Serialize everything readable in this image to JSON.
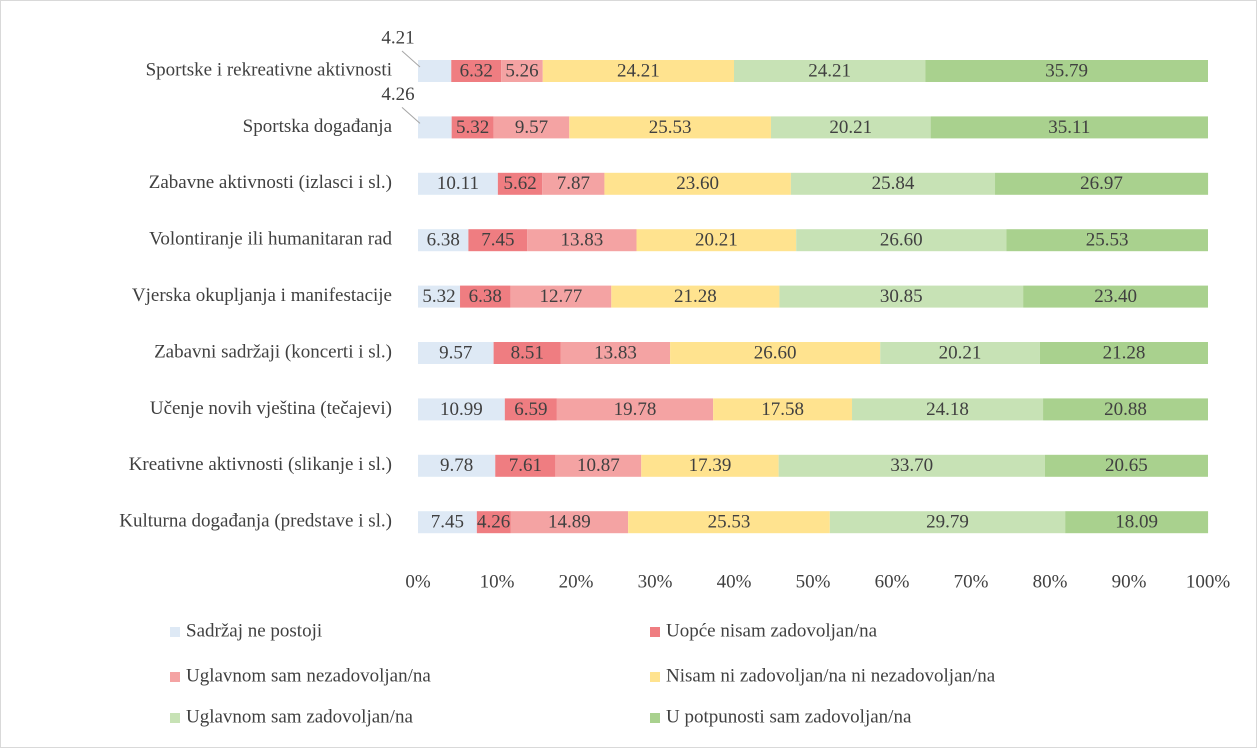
{
  "chart_data": {
    "type": "stacked_barh",
    "categories": [
      "Sportske i rekreativne aktivnosti",
      "Sportska događanja",
      "Zabavne aktivnosti (izlasci i sl.)",
      "Volontiranje ili humanitaran rad",
      "Vjerska okupljanja i manifestacije",
      "Zabavni sadržaji (koncerti i sl.)",
      "Učenje novih vještina (tečajevi)",
      "Kreativne aktivnosti (slikanje i sl.)",
      "Kulturna događanja (predstave i sl.)"
    ],
    "series": [
      {
        "name": "Sadržaj ne postoji",
        "color": "#dee9f5",
        "values": [
          4.21,
          4.26,
          10.11,
          6.38,
          5.32,
          9.57,
          10.99,
          9.78,
          7.45
        ],
        "value_labels": [
          "4.21",
          "4.26",
          "10.11",
          "6.38",
          "5.32",
          "9.57",
          "10.99",
          "9.78",
          "7.45"
        ]
      },
      {
        "name": "Uopće nisam zadovoljan/na",
        "color": "#ef7d81",
        "values": [
          6.32,
          5.32,
          5.62,
          7.45,
          6.38,
          8.51,
          6.59,
          7.61,
          4.26
        ],
        "value_labels": [
          "6.32",
          "5.32",
          "5.62",
          "7.45",
          "6.38",
          "8.51",
          "6.59",
          "7.61",
          "4.26"
        ]
      },
      {
        "name": "Uglavnom sam nezadovoljan/na",
        "color": "#f4a3a3",
        "values": [
          5.26,
          9.57,
          7.87,
          13.83,
          12.77,
          13.83,
          19.78,
          10.87,
          14.89
        ],
        "value_labels": [
          "5.26",
          "9.57",
          "7.87",
          "13.83",
          "12.77",
          "13.83",
          "19.78",
          "10.87",
          "14.89"
        ]
      },
      {
        "name": "Nisam ni zadovoljan/na ni nezadovoljan/na",
        "color": "#ffe38f",
        "values": [
          24.21,
          25.53,
          23.6,
          20.21,
          21.28,
          26.6,
          17.58,
          17.39,
          25.53
        ],
        "value_labels": [
          "24.21",
          "25.53",
          "23.60",
          "20.21",
          "21.28",
          "26.60",
          "17.58",
          "17.39",
          "25.53"
        ]
      },
      {
        "name": "Uglavnom sam zadovoljan/na",
        "color": "#c7e2b5",
        "values": [
          24.21,
          20.21,
          25.84,
          26.6,
          30.85,
          20.21,
          24.18,
          33.7,
          29.79
        ],
        "value_labels": [
          "24.21",
          "20.21",
          "25.84",
          "26.60",
          "30.85",
          "20.21",
          "24.18",
          "33.70",
          "29.79"
        ]
      },
      {
        "name": "U potpunosti sam zadovoljan/na",
        "color": "#a9d18e",
        "values": [
          35.79,
          35.11,
          26.97,
          25.53,
          23.4,
          21.28,
          20.88,
          20.65,
          18.09
        ],
        "value_labels": [
          "35.79",
          "35.11",
          "26.97",
          "25.53",
          "23.40",
          "21.28",
          "20.88",
          "20.65",
          "18.09"
        ]
      }
    ],
    "xlim": [
      0,
      100
    ],
    "xticks": [
      {
        "value": 0,
        "label": "0%"
      },
      {
        "value": 10,
        "label": "10%"
      },
      {
        "value": 20,
        "label": "20%"
      },
      {
        "value": 30,
        "label": "30%"
      },
      {
        "value": 40,
        "label": "40%"
      },
      {
        "value": 50,
        "label": "50%"
      },
      {
        "value": 60,
        "label": "60%"
      },
      {
        "value": 70,
        "label": "70%"
      },
      {
        "value": 80,
        "label": "80%"
      },
      {
        "value": 90,
        "label": "90%"
      },
      {
        "value": 100,
        "label": "100%"
      }
    ]
  }
}
